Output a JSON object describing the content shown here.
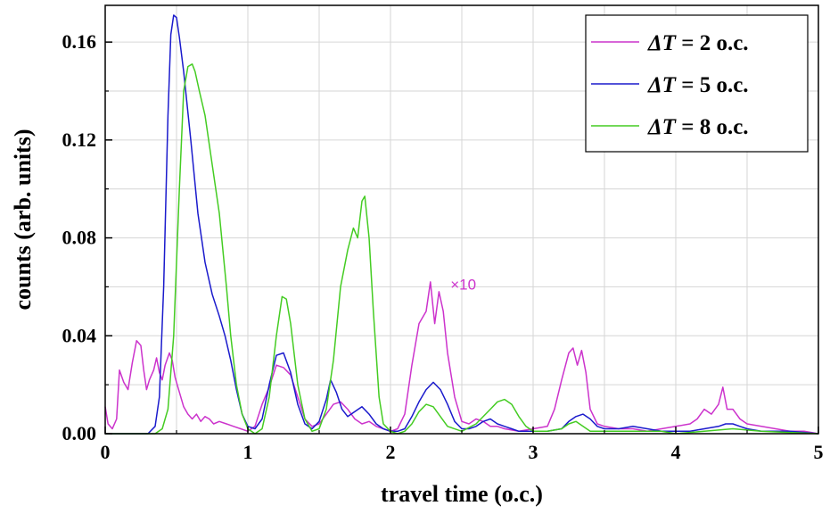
{
  "chart_data": {
    "type": "line",
    "xlabel": "travel time (o.c.)",
    "ylabel": "counts (arb. units)",
    "xlim": [
      0,
      5
    ],
    "ylim": [
      0,
      0.175
    ],
    "xticks": [
      0,
      1,
      2,
      3,
      4,
      5
    ],
    "xtick_labels": [
      "0",
      "1",
      "2",
      "3",
      "4",
      "5"
    ],
    "yticks": [
      0,
      0.04,
      0.08,
      0.12,
      0.16
    ],
    "ytick_labels": [
      "0.00",
      "0.04",
      "0.08",
      "0.12",
      "0.16"
    ],
    "grid": true,
    "legend_position": "top-right",
    "annotation": {
      "text": "×10",
      "x": 2.42,
      "y": 0.061,
      "color": "#cc33cc"
    },
    "series": [
      {
        "name": "ΔT = 2 o.c.",
        "legend_prefix": "ΔT",
        "legend_suffix": " = 2 o.c.",
        "color": "#cc33cc",
        "points": [
          [
            0,
            0.011
          ],
          [
            0.02,
            0.004
          ],
          [
            0.05,
            0.002
          ],
          [
            0.08,
            0.006
          ],
          [
            0.1,
            0.026
          ],
          [
            0.13,
            0.021
          ],
          [
            0.16,
            0.018
          ],
          [
            0.19,
            0.029
          ],
          [
            0.22,
            0.038
          ],
          [
            0.25,
            0.036
          ],
          [
            0.27,
            0.026
          ],
          [
            0.29,
            0.018
          ],
          [
            0.31,
            0.022
          ],
          [
            0.34,
            0.026
          ],
          [
            0.36,
            0.031
          ],
          [
            0.38,
            0.025
          ],
          [
            0.4,
            0.022
          ],
          [
            0.42,
            0.028
          ],
          [
            0.45,
            0.033
          ],
          [
            0.47,
            0.03
          ],
          [
            0.49,
            0.023
          ],
          [
            0.52,
            0.017
          ],
          [
            0.55,
            0.011
          ],
          [
            0.58,
            0.008
          ],
          [
            0.61,
            0.006
          ],
          [
            0.64,
            0.008
          ],
          [
            0.67,
            0.005
          ],
          [
            0.7,
            0.007
          ],
          [
            0.73,
            0.006
          ],
          [
            0.76,
            0.004
          ],
          [
            0.8,
            0.005
          ],
          [
            0.85,
            0.004
          ],
          [
            0.9,
            0.003
          ],
          [
            0.95,
            0.002
          ],
          [
            1.0,
            0.001
          ],
          [
            1.05,
            0.003
          ],
          [
            1.1,
            0.012
          ],
          [
            1.15,
            0.019
          ],
          [
            1.2,
            0.028
          ],
          [
            1.25,
            0.027
          ],
          [
            1.3,
            0.024
          ],
          [
            1.35,
            0.015
          ],
          [
            1.4,
            0.006
          ],
          [
            1.45,
            0.003
          ],
          [
            1.5,
            0.004
          ],
          [
            1.55,
            0.008
          ],
          [
            1.6,
            0.012
          ],
          [
            1.65,
            0.013
          ],
          [
            1.7,
            0.01
          ],
          [
            1.75,
            0.006
          ],
          [
            1.8,
            0.004
          ],
          [
            1.85,
            0.005
          ],
          [
            1.9,
            0.003
          ],
          [
            1.95,
            0.002
          ],
          [
            2.0,
            0.001
          ],
          [
            2.05,
            0.002
          ],
          [
            2.1,
            0.008
          ],
          [
            2.15,
            0.028
          ],
          [
            2.2,
            0.045
          ],
          [
            2.25,
            0.05
          ],
          [
            2.28,
            0.062
          ],
          [
            2.31,
            0.045
          ],
          [
            2.34,
            0.058
          ],
          [
            2.37,
            0.05
          ],
          [
            2.4,
            0.033
          ],
          [
            2.45,
            0.015
          ],
          [
            2.5,
            0.005
          ],
          [
            2.55,
            0.004
          ],
          [
            2.6,
            0.006
          ],
          [
            2.65,
            0.005
          ],
          [
            2.7,
            0.003
          ],
          [
            2.75,
            0.003
          ],
          [
            2.8,
            0.002
          ],
          [
            2.9,
            0.001
          ],
          [
            3.0,
            0.002
          ],
          [
            3.1,
            0.003
          ],
          [
            3.15,
            0.01
          ],
          [
            3.2,
            0.022
          ],
          [
            3.25,
            0.033
          ],
          [
            3.28,
            0.035
          ],
          [
            3.31,
            0.028
          ],
          [
            3.34,
            0.034
          ],
          [
            3.37,
            0.025
          ],
          [
            3.4,
            0.01
          ],
          [
            3.45,
            0.004
          ],
          [
            3.5,
            0.003
          ],
          [
            3.6,
            0.002
          ],
          [
            3.7,
            0.002
          ],
          [
            3.8,
            0.001
          ],
          [
            3.9,
            0.002
          ],
          [
            4.0,
            0.003
          ],
          [
            4.1,
            0.004
          ],
          [
            4.15,
            0.006
          ],
          [
            4.2,
            0.01
          ],
          [
            4.25,
            0.008
          ],
          [
            4.3,
            0.012
          ],
          [
            4.33,
            0.019
          ],
          [
            4.36,
            0.01
          ],
          [
            4.4,
            0.01
          ],
          [
            4.45,
            0.006
          ],
          [
            4.5,
            0.004
          ],
          [
            4.6,
            0.003
          ],
          [
            4.7,
            0.002
          ],
          [
            4.8,
            0.001
          ],
          [
            4.9,
            0.001
          ],
          [
            5.0,
            0.0
          ]
        ]
      },
      {
        "name": "ΔT = 5 o.c.",
        "legend_prefix": "ΔT",
        "legend_suffix": " = 5 o.c.",
        "color": "#1a1acc",
        "points": [
          [
            0,
            0.0
          ],
          [
            0.3,
            0.0
          ],
          [
            0.35,
            0.003
          ],
          [
            0.38,
            0.015
          ],
          [
            0.41,
            0.06
          ],
          [
            0.44,
            0.13
          ],
          [
            0.46,
            0.163
          ],
          [
            0.48,
            0.171
          ],
          [
            0.5,
            0.17
          ],
          [
            0.52,
            0.162
          ],
          [
            0.55,
            0.148
          ],
          [
            0.6,
            0.12
          ],
          [
            0.65,
            0.09
          ],
          [
            0.7,
            0.07
          ],
          [
            0.75,
            0.057
          ],
          [
            0.8,
            0.048
          ],
          [
            0.84,
            0.04
          ],
          [
            0.88,
            0.03
          ],
          [
            0.92,
            0.018
          ],
          [
            0.96,
            0.008
          ],
          [
            1.0,
            0.003
          ],
          [
            1.05,
            0.002
          ],
          [
            1.1,
            0.006
          ],
          [
            1.15,
            0.02
          ],
          [
            1.2,
            0.032
          ],
          [
            1.25,
            0.033
          ],
          [
            1.3,
            0.025
          ],
          [
            1.35,
            0.012
          ],
          [
            1.4,
            0.004
          ],
          [
            1.45,
            0.002
          ],
          [
            1.5,
            0.005
          ],
          [
            1.55,
            0.014
          ],
          [
            1.58,
            0.022
          ],
          [
            1.62,
            0.017
          ],
          [
            1.66,
            0.01
          ],
          [
            1.7,
            0.007
          ],
          [
            1.75,
            0.009
          ],
          [
            1.8,
            0.011
          ],
          [
            1.85,
            0.008
          ],
          [
            1.9,
            0.004
          ],
          [
            1.95,
            0.002
          ],
          [
            2.0,
            0.001
          ],
          [
            2.05,
            0.001
          ],
          [
            2.1,
            0.002
          ],
          [
            2.15,
            0.007
          ],
          [
            2.2,
            0.013
          ],
          [
            2.25,
            0.018
          ],
          [
            2.3,
            0.021
          ],
          [
            2.35,
            0.018
          ],
          [
            2.4,
            0.012
          ],
          [
            2.45,
            0.005
          ],
          [
            2.5,
            0.002
          ],
          [
            2.55,
            0.002
          ],
          [
            2.6,
            0.003
          ],
          [
            2.65,
            0.005
          ],
          [
            2.7,
            0.006
          ],
          [
            2.75,
            0.004
          ],
          [
            2.8,
            0.003
          ],
          [
            2.85,
            0.002
          ],
          [
            2.9,
            0.001
          ],
          [
            3.0,
            0.001
          ],
          [
            3.1,
            0.001
          ],
          [
            3.2,
            0.002
          ],
          [
            3.25,
            0.005
          ],
          [
            3.3,
            0.007
          ],
          [
            3.35,
            0.008
          ],
          [
            3.4,
            0.006
          ],
          [
            3.45,
            0.003
          ],
          [
            3.5,
            0.002
          ],
          [
            3.6,
            0.002
          ],
          [
            3.7,
            0.003
          ],
          [
            3.8,
            0.002
          ],
          [
            3.9,
            0.001
          ],
          [
            4.0,
            0.001
          ],
          [
            4.1,
            0.001
          ],
          [
            4.2,
            0.002
          ],
          [
            4.3,
            0.003
          ],
          [
            4.35,
            0.004
          ],
          [
            4.4,
            0.004
          ],
          [
            4.45,
            0.003
          ],
          [
            4.5,
            0.002
          ],
          [
            4.6,
            0.001
          ],
          [
            4.8,
            0.001
          ],
          [
            5.0,
            0.0
          ]
        ]
      },
      {
        "name": "ΔT = 8 o.c.",
        "legend_prefix": "ΔT",
        "legend_suffix": " = 8 o.c.",
        "color": "#44cc22",
        "points": [
          [
            0,
            0.0
          ],
          [
            0.35,
            0.0
          ],
          [
            0.4,
            0.002
          ],
          [
            0.44,
            0.01
          ],
          [
            0.48,
            0.04
          ],
          [
            0.52,
            0.1
          ],
          [
            0.55,
            0.14
          ],
          [
            0.58,
            0.15
          ],
          [
            0.61,
            0.151
          ],
          [
            0.63,
            0.148
          ],
          [
            0.66,
            0.14
          ],
          [
            0.7,
            0.13
          ],
          [
            0.75,
            0.11
          ],
          [
            0.8,
            0.09
          ],
          [
            0.85,
            0.06
          ],
          [
            0.88,
            0.04
          ],
          [
            0.92,
            0.02
          ],
          [
            0.96,
            0.008
          ],
          [
            1.0,
            0.002
          ],
          [
            1.05,
            0.0
          ],
          [
            1.1,
            0.002
          ],
          [
            1.15,
            0.015
          ],
          [
            1.2,
            0.04
          ],
          [
            1.24,
            0.056
          ],
          [
            1.27,
            0.055
          ],
          [
            1.3,
            0.045
          ],
          [
            1.35,
            0.02
          ],
          [
            1.4,
            0.006
          ],
          [
            1.45,
            0.001
          ],
          [
            1.5,
            0.002
          ],
          [
            1.55,
            0.01
          ],
          [
            1.6,
            0.03
          ],
          [
            1.65,
            0.06
          ],
          [
            1.7,
            0.075
          ],
          [
            1.74,
            0.084
          ],
          [
            1.77,
            0.08
          ],
          [
            1.8,
            0.095
          ],
          [
            1.82,
            0.097
          ],
          [
            1.85,
            0.08
          ],
          [
            1.88,
            0.05
          ],
          [
            1.92,
            0.015
          ],
          [
            1.95,
            0.004
          ],
          [
            2.0,
            0.001
          ],
          [
            2.05,
            0.0
          ],
          [
            2.1,
            0.001
          ],
          [
            2.15,
            0.004
          ],
          [
            2.2,
            0.009
          ],
          [
            2.25,
            0.012
          ],
          [
            2.3,
            0.011
          ],
          [
            2.35,
            0.007
          ],
          [
            2.4,
            0.003
          ],
          [
            2.5,
            0.001
          ],
          [
            2.6,
            0.004
          ],
          [
            2.7,
            0.01
          ],
          [
            2.75,
            0.013
          ],
          [
            2.8,
            0.014
          ],
          [
            2.85,
            0.012
          ],
          [
            2.9,
            0.007
          ],
          [
            2.95,
            0.003
          ],
          [
            3.0,
            0.001
          ],
          [
            3.1,
            0.001
          ],
          [
            3.2,
            0.002
          ],
          [
            3.25,
            0.004
          ],
          [
            3.3,
            0.005
          ],
          [
            3.35,
            0.003
          ],
          [
            3.4,
            0.001
          ],
          [
            3.5,
            0.001
          ],
          [
            3.7,
            0.001
          ],
          [
            3.9,
            0.001
          ],
          [
            4.0,
            0.0
          ],
          [
            4.2,
            0.001
          ],
          [
            4.4,
            0.002
          ],
          [
            4.6,
            0.001
          ],
          [
            5.0,
            0.0
          ]
        ]
      }
    ]
  }
}
